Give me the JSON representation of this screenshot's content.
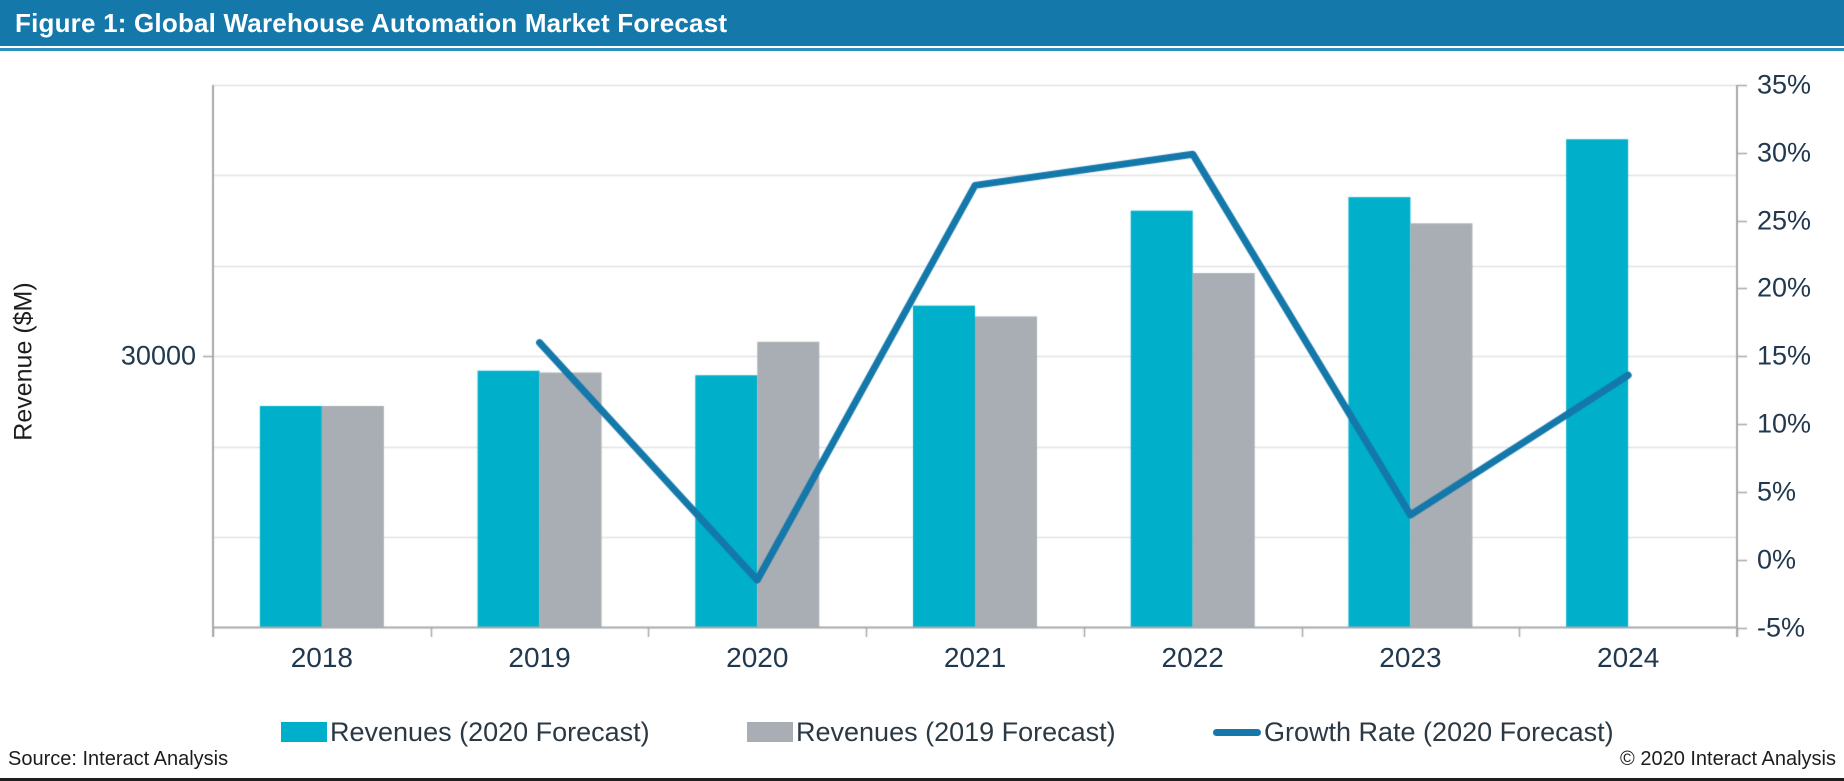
{
  "header": {
    "title": "Figure 1: Global Warehouse Automation Market Forecast"
  },
  "footer": {
    "source": "Source: Interact Analysis",
    "copyright": "© 2020 Interact Analysis"
  },
  "colors": {
    "header_bar": "#1478AA",
    "revenue_2020_bar": "#00B0CB",
    "revenue_2019_bar": "#A8AEB3",
    "growth_line": "#1478AA",
    "tick_label": "#21384E",
    "gridline": "#E0E3E5",
    "axis": "#A6A9AC"
  },
  "chart_data": {
    "type": "bar",
    "subtype": "grouped-bar-with-line",
    "categories": [
      "2018",
      "2019",
      "2020",
      "2021",
      "2022",
      "2023",
      "2024"
    ],
    "series": [
      {
        "name": "Revenues (2020 Forecast)",
        "kind": "bar",
        "axis": "left",
        "color_key": "revenue_2020_bar",
        "values": [
          24500,
          28400,
          27900,
          35600,
          46100,
          47600,
          54000
        ]
      },
      {
        "name": "Revenues (2019 Forecast)",
        "kind": "bar",
        "axis": "left",
        "color_key": "revenue_2019_bar",
        "values": [
          24500,
          28200,
          31600,
          34400,
          39200,
          44700,
          null
        ]
      },
      {
        "name": "Growth Rate (2020 Forecast)",
        "kind": "line",
        "axis": "right",
        "color_key": "growth_line",
        "values": [
          null,
          16,
          -1.5,
          27.6,
          29.9,
          3.3,
          13.6
        ]
      }
    ],
    "left_axis": {
      "label": "Revenue ($M)",
      "min": 0,
      "max": 60000,
      "gridline_step": 10000,
      "shown_tick_labels": [
        {
          "value": 30000,
          "label": "30000"
        }
      ]
    },
    "right_axis": {
      "min": -5,
      "max": 35,
      "step": 5,
      "suffix": "%"
    },
    "grid": true,
    "legend_position": "bottom"
  }
}
